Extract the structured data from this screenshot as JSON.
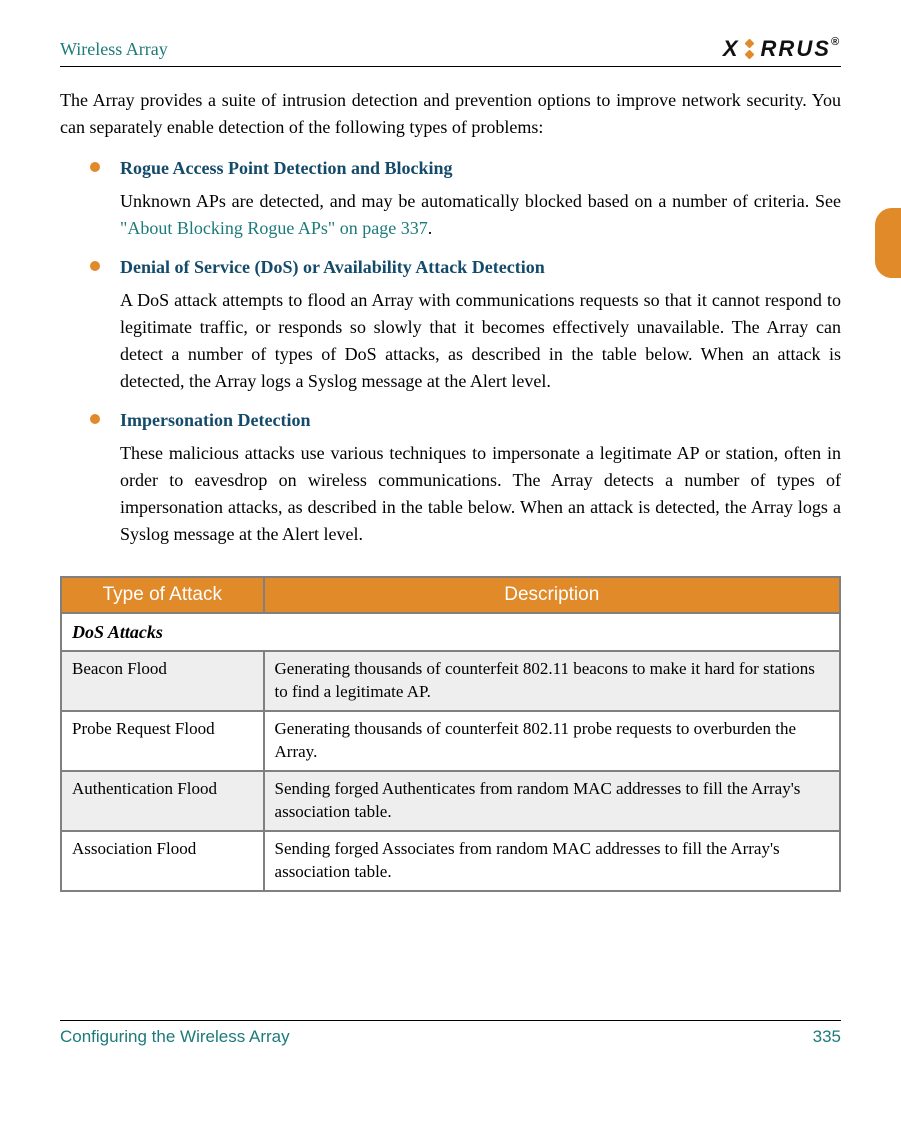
{
  "header": {
    "title": "Wireless Array",
    "brand": "XIRRUS"
  },
  "intro": "The Array provides a suite of intrusion detection and prevention options to improve network security. You can separately enable detection of the following types of problems:",
  "bullets": [
    {
      "title": "Rogue Access Point Detection and Blocking",
      "body_pre": "Unknown APs are detected, and may be automatically blocked based on a number of criteria. See ",
      "xref": "\"About Blocking Rogue APs\" on page 337",
      "body_post": "."
    },
    {
      "title": "Denial of Service (DoS) or Availability Attack Detection",
      "body": "A DoS attack attempts to flood an Array with communications requests so that it cannot respond to legitimate traffic, or responds so slowly that it becomes effectively unavailable. The Array can detect a number of types of DoS attacks, as described in the table below. When an attack is detected, the Array logs a Syslog message at the Alert level."
    },
    {
      "title": "Impersonation Detection",
      "body": "These malicious attacks use various techniques to impersonate a legitimate AP or station, often in order to eavesdrop on wireless communications. The Array detects a number of types of impersonation attacks, as described in the table below. When an attack is detected, the Array logs a Syslog message at the Alert level."
    }
  ],
  "table": {
    "columns": [
      "Type of Attack",
      "Description"
    ],
    "subhead": "DoS Attacks",
    "rows": [
      {
        "type": "Beacon Flood",
        "desc": "Generating thousands of counterfeit 802.11 beacons to make it hard for stations to find a legitimate AP."
      },
      {
        "type": "Probe Request Flood",
        "desc": "Generating thousands of counterfeit 802.11 probe requests to overburden the Array."
      },
      {
        "type": "Authentication Flood",
        "desc": "Sending forged Authenticates from random MAC addresses to fill the Array's association table."
      },
      {
        "type": "Association Flood",
        "desc": "Sending forged Associates from random MAC addresses to fill the Array's association table."
      }
    ],
    "header_bg": "#e08a2a",
    "header_fg": "#ffffff",
    "border_color": "#808080",
    "alt_bg": "#eeeeee"
  },
  "footer": {
    "section": "Configuring the Wireless Array",
    "page": "335"
  },
  "colors": {
    "teal": "#1c7a7a",
    "navy": "#144a6a",
    "orange": "#e08a2a"
  }
}
